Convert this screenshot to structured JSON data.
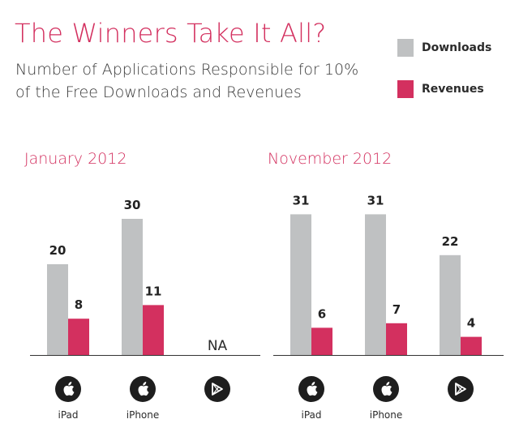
{
  "header": {
    "title": "The Winners Take It All?",
    "subtitle": "Number of Applications Responsible for 10% of the Free Downloads and Revenues"
  },
  "legend": [
    {
      "label": "Downloads",
      "color": "#bfc1c2"
    },
    {
      "label": "Revenues",
      "color": "#d3305f"
    }
  ],
  "colors": {
    "downloads": "#bfc1c2",
    "revenues": "#d3305f",
    "accent": "#d3305f",
    "axis": "#333333"
  },
  "chart_data": [
    {
      "type": "bar",
      "title": "January 2012",
      "categories": [
        "iPad",
        "iPhone",
        ""
      ],
      "category_icons": [
        "apple-icon",
        "apple-icon",
        "google-play-icon"
      ],
      "series": [
        {
          "name": "Downloads",
          "values": [
            20,
            30,
            null
          ]
        },
        {
          "name": "Revenues",
          "values": [
            8,
            11,
            null
          ]
        }
      ],
      "missing_label": "NA",
      "ylim": [
        0,
        33
      ],
      "grid": false
    },
    {
      "type": "bar",
      "title": "November 2012",
      "categories": [
        "iPad",
        "iPhone",
        ""
      ],
      "category_icons": [
        "apple-icon",
        "apple-icon",
        "google-play-icon"
      ],
      "series": [
        {
          "name": "Downloads",
          "values": [
            31,
            31,
            22
          ]
        },
        {
          "name": "Revenues",
          "values": [
            6,
            7,
            4
          ]
        }
      ],
      "ylim": [
        0,
        33
      ],
      "grid": false
    }
  ]
}
